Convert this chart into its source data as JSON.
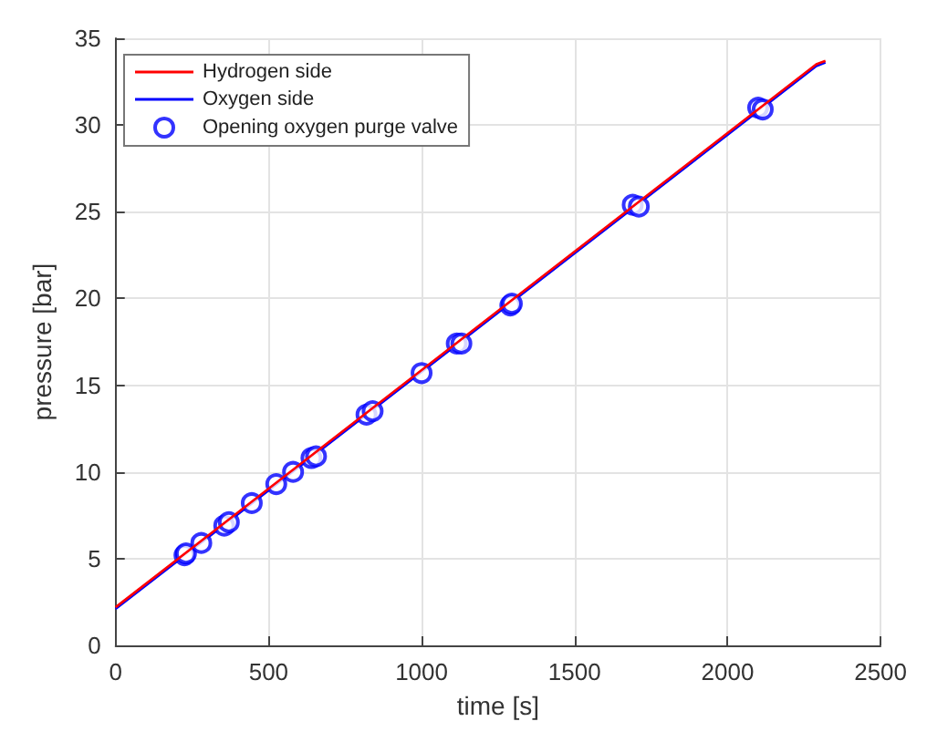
{
  "chart_data": {
    "type": "line",
    "xlabel": "time [s]",
    "ylabel": "pressure [bar]",
    "xlim": [
      0,
      2500
    ],
    "xticks": [
      0,
      500,
      1000,
      1500,
      2000,
      2500
    ],
    "ylim": [
      0,
      35
    ],
    "yticks": [
      0,
      5,
      10,
      15,
      20,
      25,
      30,
      35
    ],
    "grid": true,
    "legend": "top left",
    "series": [
      {
        "name": "Hydrogen side",
        "color": "#ff0000",
        "x": [
          0,
          2290,
          2320
        ],
        "values": [
          2.2,
          33.5,
          33.7
        ]
      },
      {
        "name": "Oxygen side",
        "color": "#0000ff",
        "x": [
          0,
          2290,
          2320
        ],
        "values": [
          2.1,
          33.4,
          33.6
        ]
      },
      {
        "name": "Opening oxygen purge valve",
        "color": "#0000ff",
        "type": "scatter",
        "marker": "circle",
        "x": [
          225,
          230,
          280,
          355,
          370,
          445,
          525,
          580,
          640,
          655,
          820,
          840,
          1000,
          1115,
          1130,
          1290,
          1295,
          1690,
          1710,
          2100,
          2115
        ],
        "values": [
          5.2,
          5.3,
          5.9,
          6.9,
          7.1,
          8.2,
          9.3,
          10.0,
          10.8,
          10.9,
          13.3,
          13.5,
          15.7,
          17.4,
          17.4,
          19.6,
          19.7,
          25.4,
          25.3,
          31.0,
          30.9
        ]
      }
    ]
  }
}
